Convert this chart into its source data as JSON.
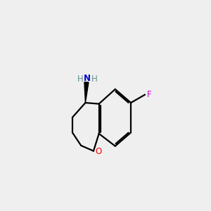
{
  "bg_color": "#efefef",
  "bond_color": "#000000",
  "oxygen_color": "#ff0000",
  "nitrogen_color": "#0000cc",
  "fluorine_color": "#cc00cc",
  "hydrogen_color": "#5f9090",
  "line_width": 1.6,
  "figsize": [
    3.0,
    3.0
  ],
  "dpi": 100,
  "xlim": [
    0,
    10
  ],
  "ylim": [
    0,
    10
  ]
}
